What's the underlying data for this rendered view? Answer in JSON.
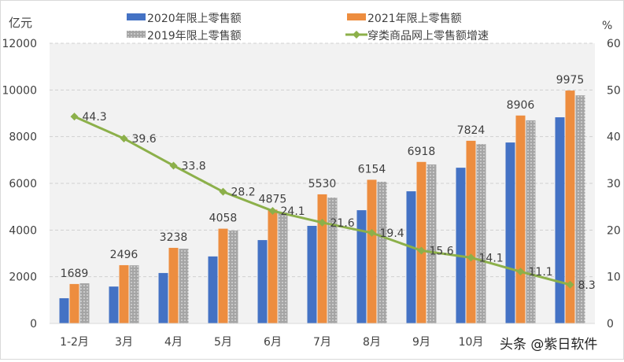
{
  "chart_data": {
    "type": "bar+line",
    "categories": [
      "1-2月",
      "3月",
      "4月",
      "5月",
      "6月",
      "7月",
      "8月",
      "9月",
      "10月",
      "",
      ""
    ],
    "ylabel_left": "亿元",
    "ylabel_right": "%",
    "ylim_left": [
      0,
      12000
    ],
    "yticks_left": [
      0,
      2000,
      4000,
      6000,
      8000,
      10000,
      12000
    ],
    "ylim_right": [
      0,
      60
    ],
    "yticks_right": [
      0,
      10,
      20,
      30,
      40,
      50,
      60
    ],
    "grid": true,
    "legend_position": "top",
    "series": [
      {
        "name": "2020年限上零售额",
        "type": "bar",
        "color": "#4472c4",
        "values": [
          1080,
          1580,
          2160,
          2870,
          3570,
          4180,
          4850,
          5660,
          6670,
          7750,
          8830
        ]
      },
      {
        "name": "2021年限上零售额",
        "type": "bar",
        "color": "#ed8d3f",
        "values": [
          1689,
          2496,
          3238,
          4058,
          4875,
          5530,
          6154,
          6918,
          7824,
          8906,
          9975
        ],
        "data_labels": true
      },
      {
        "name": "2019年限上零售额",
        "type": "bar",
        "color": "#a5a5a5",
        "pattern": "dotted",
        "values": [
          1720,
          2490,
          3200,
          3980,
          4750,
          5390,
          6070,
          6810,
          7680,
          8700,
          9770
        ]
      },
      {
        "name": "穿类商品网上零售额增速",
        "type": "line",
        "axis": "right",
        "color": "#8cb04a",
        "values": [
          44.3,
          39.6,
          33.8,
          28.2,
          24.1,
          21.6,
          19.4,
          15.6,
          14.1,
          11.1,
          8.3
        ],
        "data_labels": true
      }
    ]
  },
  "watermark": "头条 @紫日软件"
}
